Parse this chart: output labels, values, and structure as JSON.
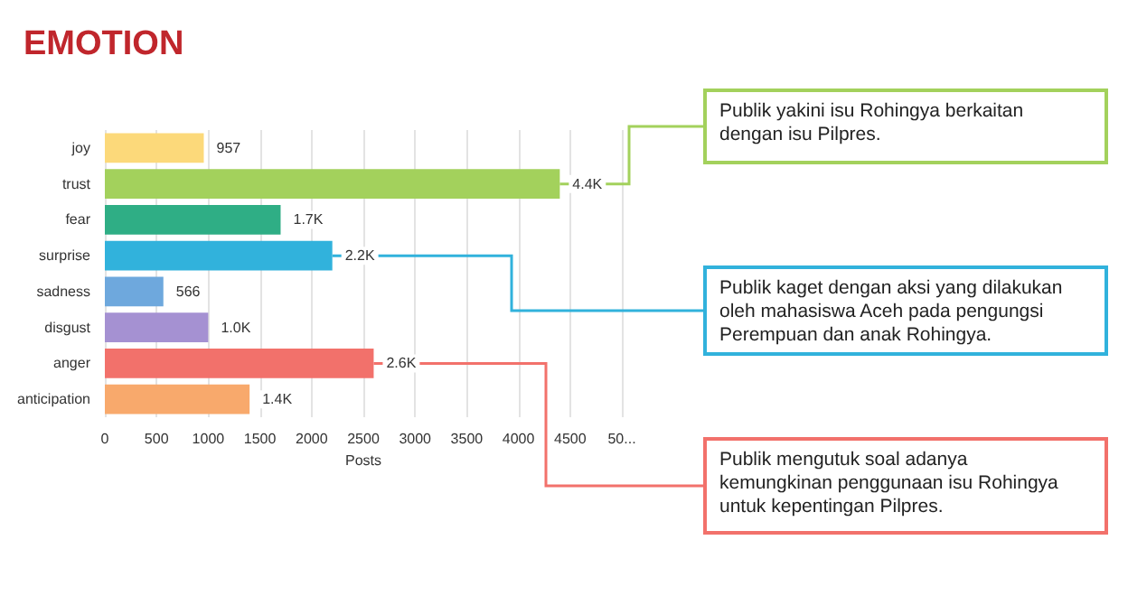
{
  "chart_data": {
    "type": "bar",
    "orientation": "horizontal",
    "title": "EMOTION",
    "xlabel": "Posts",
    "categories": [
      "joy",
      "trust",
      "fear",
      "surprise",
      "sadness",
      "disgust",
      "anger",
      "anticipation"
    ],
    "values": [
      957,
      4400,
      1700,
      2200,
      566,
      1000,
      2600,
      1400
    ],
    "value_labels": [
      "957",
      "4.4K",
      "1.7K",
      "2.2K",
      "566",
      "1.0K",
      "2.6K",
      "1.4K"
    ],
    "colors": [
      "#fcd97a",
      "#a3d15c",
      "#2fae85",
      "#31b2dc",
      "#6ea8dd",
      "#a591d2",
      "#f2716b",
      "#f8a96c"
    ],
    "xlim": [
      0,
      5000
    ],
    "xticks": [
      0,
      500,
      1000,
      1500,
      2000,
      2500,
      3000,
      3500,
      4000,
      4500,
      {
        "value": 5000,
        "label": "50..."
      }
    ],
    "grid": "x",
    "annotations": [
      {
        "text": "Publik yakini isu Rohingya berkaitan dengan isu Pilpres.",
        "x": 4400,
        "y": "trust"
      },
      {
        "text": "Publik kaget dengan aksi yang dilakukan oleh mahasiswa Aceh pada pengungsi Perempuan dan anak Rohingya.",
        "x": 2200,
        "y": "surprise"
      },
      {
        "text": "Publik mengutuk soal adanya kemungkinan penggunaan isu Rohingya untuk kepentingan Pilpres.",
        "x": 2600,
        "y": "anger"
      }
    ]
  }
}
